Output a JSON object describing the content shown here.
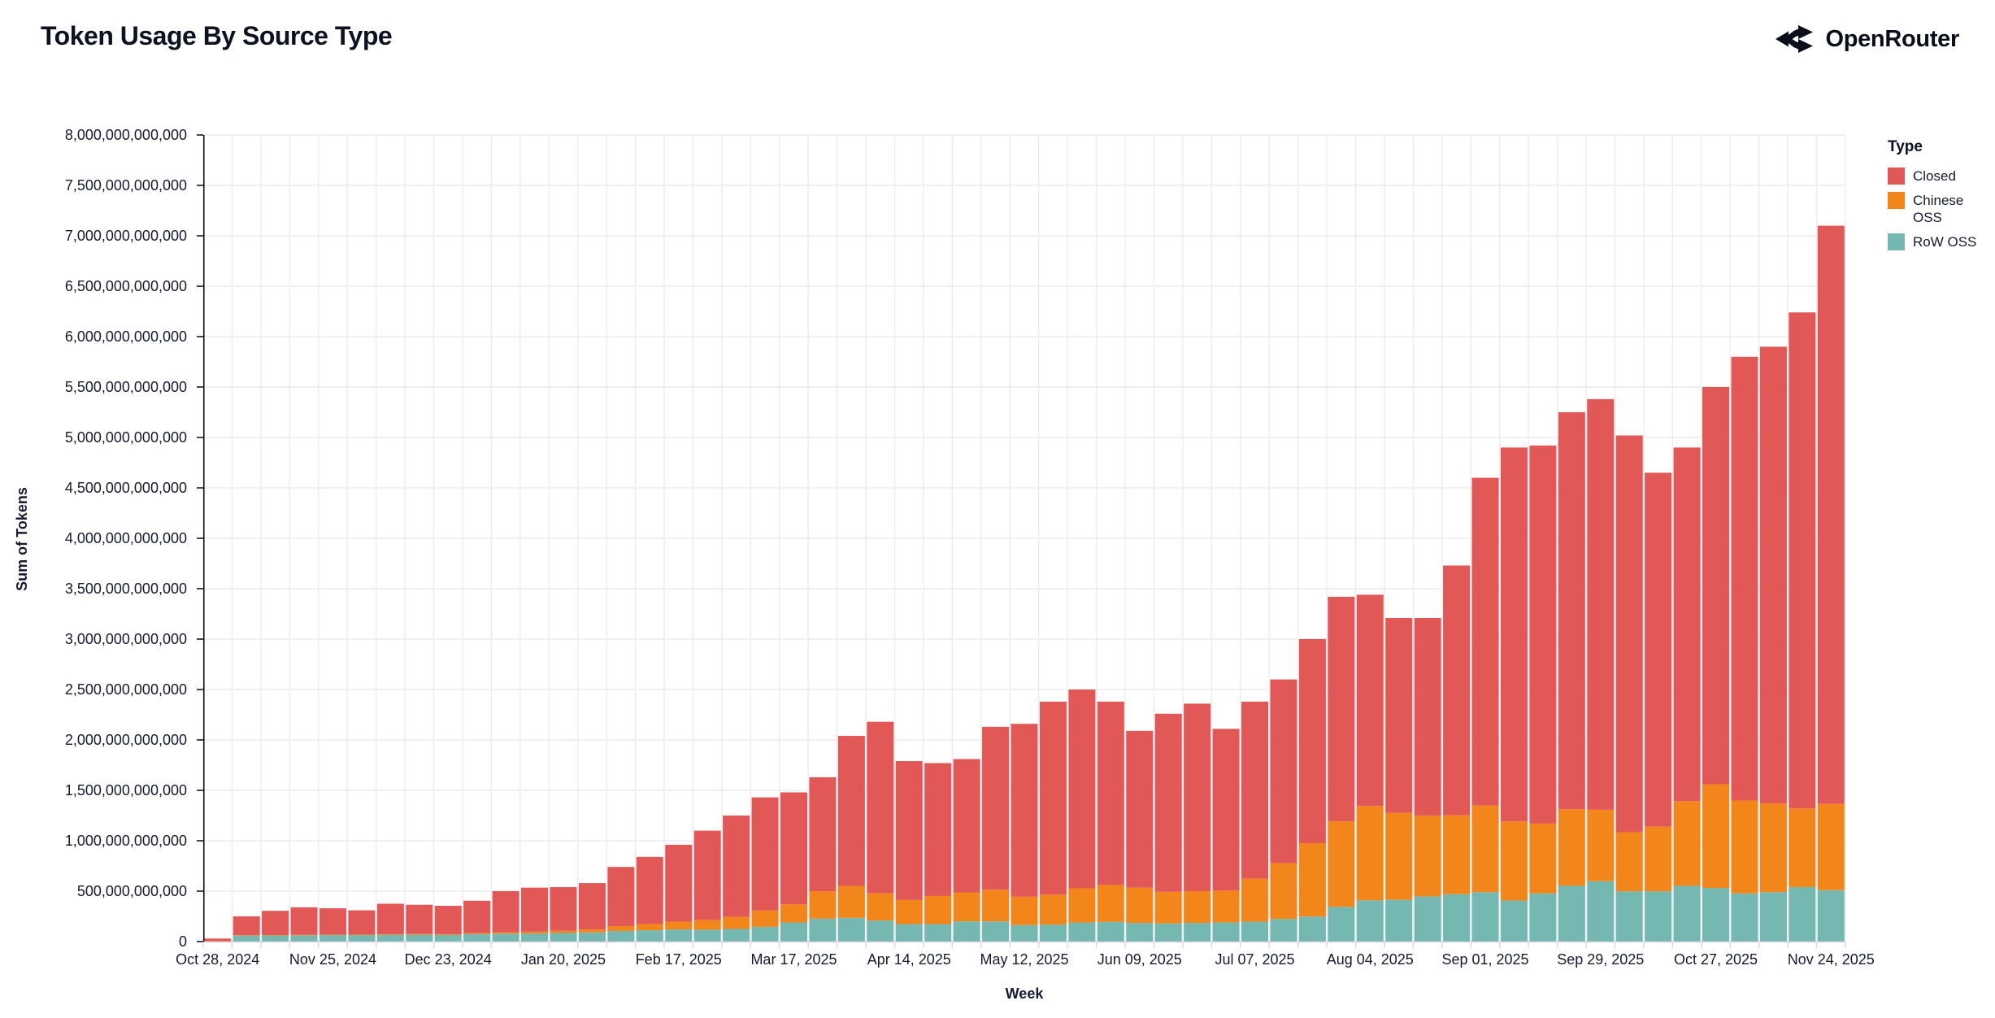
{
  "header": {
    "title": "Token Usage By Source Type",
    "logo_text": "OpenRouter"
  },
  "chart_data": {
    "type": "bar",
    "stacked": true,
    "title": "Token Usage By Source Type",
    "xlabel": "Week",
    "ylabel": "Sum of Tokens",
    "value_unit": "tokens, values stored in billions (1 = 1,000,000,000 tokens)",
    "ylim_billions": [
      0,
      8000
    ],
    "ytick_step_billions": 500,
    "grid": true,
    "legend_position": "right",
    "legend_title": "Type",
    "xtick_label_every": 4,
    "x": [
      "Oct 28, 2024",
      "Nov 04, 2024",
      "Nov 11, 2024",
      "Nov 18, 2024",
      "Nov 25, 2024",
      "Dec 02, 2024",
      "Dec 09, 2024",
      "Dec 16, 2024",
      "Dec 23, 2024",
      "Dec 30, 2024",
      "Jan 06, 2025",
      "Jan 13, 2025",
      "Jan 20, 2025",
      "Jan 27, 2025",
      "Feb 03, 2025",
      "Feb 10, 2025",
      "Feb 17, 2025",
      "Feb 24, 2025",
      "Mar 03, 2025",
      "Mar 10, 2025",
      "Mar 17, 2025",
      "Mar 24, 2025",
      "Mar 31, 2025",
      "Apr 07, 2025",
      "Apr 14, 2025",
      "Apr 21, 2025",
      "Apr 28, 2025",
      "May 05, 2025",
      "May 12, 2025",
      "May 19, 2025",
      "May 26, 2025",
      "Jun 02, 2025",
      "Jun 09, 2025",
      "Jun 16, 2025",
      "Jun 23, 2025",
      "Jun 30, 2025",
      "Jul 07, 2025",
      "Jul 14, 2025",
      "Jul 21, 2025",
      "Jul 28, 2025",
      "Aug 04, 2025",
      "Aug 11, 2025",
      "Aug 18, 2025",
      "Aug 25, 2025",
      "Sep 01, 2025",
      "Sep 08, 2025",
      "Sep 15, 2025",
      "Sep 22, 2025",
      "Sep 29, 2025",
      "Oct 06, 2025",
      "Oct 13, 2025",
      "Oct 20, 2025",
      "Oct 27, 2025",
      "Nov 03, 2025",
      "Nov 10, 2025",
      "Nov 17, 2025",
      "Nov 24, 2025"
    ],
    "ytick_labels": [
      "0",
      "500,000,000,000",
      "1,000,000,000,000",
      "1,500,000,000,000",
      "2,000,000,000,000",
      "2,500,000,000,000",
      "3,000,000,000,000",
      "3,500,000,000,000",
      "4,000,000,000,000",
      "4,500,000,000,000",
      "5,000,000,000,000",
      "5,500,000,000,000",
      "6,000,000,000,000",
      "6,500,000,000,000",
      "7,000,000,000,000",
      "7,500,000,000,000",
      "8,000,000,000,000"
    ],
    "series": [
      {
        "name": "Closed",
        "color": "#e25857",
        "values": [
          27,
          187,
          240,
          274,
          262,
          241,
          302,
          291,
          282,
          321,
          408,
          437,
          433,
          460,
          587,
          666,
          762,
          887,
          1005,
          1122,
          1111,
          1131,
          1488,
          1701,
          1378,
          1318,
          1322,
          1616,
          1715,
          1915,
          1972,
          1819,
          1555,
          1767,
          1860,
          1605,
          1757,
          1823,
          2024,
          2228,
          2095,
          1934,
          1962,
          2477,
          3250,
          3708,
          3750,
          3937,
          4073,
          3935,
          3510,
          3507,
          3940,
          4401,
          4530,
          4920,
          5735
        ]
      },
      {
        "name": "Chinese OSS",
        "color": "#f3861b",
        "values": [
          1,
          3,
          3,
          4,
          4,
          5,
          6,
          7,
          7,
          9,
          14,
          18,
          22,
          30,
          48,
          62,
          78,
          95,
          120,
          162,
          180,
          271,
          317,
          270,
          239,
          279,
          288,
          314,
          282,
          297,
          339,
          366,
          350,
          313,
          315,
          315,
          425,
          552,
          728,
          847,
          936,
          862,
          800,
          783,
          860,
          785,
          692,
          760,
          708,
          587,
          642,
          840,
          1028,
          921,
          880,
          780,
          855
        ]
      },
      {
        "name": "RoW OSS",
        "color": "#74b8b1",
        "values": [
          2,
          60,
          62,
          62,
          64,
          64,
          67,
          67,
          66,
          75,
          78,
          80,
          85,
          90,
          105,
          112,
          120,
          118,
          125,
          146,
          189,
          228,
          235,
          209,
          173,
          173,
          200,
          200,
          163,
          168,
          189,
          195,
          185,
          180,
          185,
          190,
          198,
          225,
          248,
          345,
          409,
          414,
          448,
          470,
          490,
          407,
          478,
          553,
          599,
          498,
          498,
          553,
          532,
          478,
          490,
          540,
          510
        ]
      }
    ],
    "stack_order_bottom_to_top": [
      "RoW OSS",
      "Chinese OSS",
      "Closed"
    ],
    "colors": {
      "grid": "#ebebf3",
      "axis_domain": "#14172a",
      "x_tick": "#d8d8e2",
      "text": "#161a2c"
    }
  }
}
